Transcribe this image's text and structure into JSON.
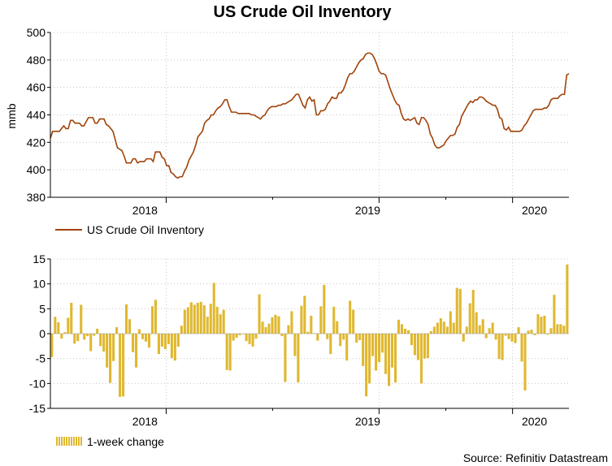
{
  "chart_data": [
    {
      "type": "line",
      "title": "US Crude Oil Inventory",
      "ylabel": "mmb",
      "xlabel": "",
      "ylim": [
        380,
        500
      ],
      "yticks": [
        "380",
        "400",
        "420",
        "440",
        "460",
        "480",
        "500"
      ],
      "xticks": [
        "2018",
        "2019",
        "2020"
      ],
      "xrange": [
        "2017-07",
        "2020-03"
      ],
      "legend": "US Crude Oil Inventory",
      "legend_position": "bottom-left",
      "color": "#a0430a",
      "series": [
        {
          "name": "US Crude Oil Inventory",
          "values": [
            423,
            428,
            428,
            428,
            428,
            430,
            432,
            430,
            430,
            436,
            436,
            434,
            434,
            434,
            432,
            432,
            435,
            438,
            438,
            438,
            434,
            434,
            437,
            437,
            437,
            433,
            432,
            430,
            428,
            422,
            416,
            415,
            414,
            410,
            405,
            405,
            405,
            408,
            408,
            405,
            406,
            406,
            406,
            408,
            408,
            408,
            406,
            413,
            413,
            413,
            409,
            408,
            403,
            403,
            398,
            397,
            395,
            394,
            395,
            395,
            399,
            402,
            407,
            410,
            413,
            418,
            424,
            426,
            428,
            434,
            436,
            437,
            440,
            440,
            443,
            445,
            446,
            448,
            451,
            451,
            446,
            442,
            442,
            442,
            441,
            441,
            441,
            441,
            441,
            441,
            440,
            440,
            439,
            438,
            437,
            439,
            440,
            443,
            445,
            446,
            446,
            446,
            447,
            447,
            448,
            448,
            449,
            450,
            451,
            453,
            455,
            455,
            451,
            447,
            445,
            451,
            453,
            450,
            451,
            440,
            440,
            443,
            443,
            444,
            448,
            450,
            453,
            452,
            452,
            456,
            456,
            458,
            462,
            467,
            470,
            470,
            472,
            475,
            478,
            480,
            481,
            484,
            485,
            485,
            484,
            481,
            477,
            472,
            470,
            470,
            469,
            464,
            459,
            455,
            451,
            448,
            447,
            441,
            437,
            436,
            437,
            436,
            437,
            438,
            434,
            433,
            438,
            438,
            436,
            433,
            426,
            423,
            418,
            416,
            416,
            417,
            418,
            421,
            423,
            425,
            425,
            426,
            431,
            433,
            439,
            442,
            445,
            448,
            450,
            449,
            451,
            451,
            453,
            453,
            452,
            450,
            449,
            448,
            447,
            447,
            444,
            438,
            437,
            430,
            429,
            431,
            428,
            428,
            428,
            428,
            428,
            429,
            432,
            434,
            437,
            440,
            443,
            444,
            444,
            444,
            444,
            445,
            445,
            447,
            451,
            452,
            452,
            452,
            454,
            455,
            455,
            469,
            470
          ]
        }
      ]
    },
    {
      "type": "bar",
      "title": "",
      "ylabel": "",
      "xlabel": "",
      "ylim": [
        -15,
        15
      ],
      "yticks": [
        "-15",
        "-10",
        "-5",
        "0",
        "5",
        "10",
        "15"
      ],
      "xticks": [
        "2018",
        "2019",
        "2020"
      ],
      "xrange": [
        "2017-07",
        "2020-03"
      ],
      "legend": "1-week change",
      "legend_position": "bottom-left",
      "color": "#e0b830",
      "series": [
        {
          "name": "1-week change",
          "values": [
            -4.7,
            3.4,
            2.3,
            -1.0,
            0.3,
            3.2,
            6.2,
            -2.0,
            -1.5,
            5.8,
            -1.2,
            -0.5,
            -3.5,
            -0.4,
            1.0,
            -2.5,
            -3.6,
            -6.8,
            -9.9,
            -5.5,
            1.3,
            -12.7,
            -12.6,
            5.9,
            2.9,
            -3.7,
            -6.8,
            0.9,
            -1.1,
            -1.6,
            -2.8,
            5.5,
            6.8,
            -4.1,
            -2.6,
            -3.1,
            -2.1,
            -4.9,
            -5.4,
            -2.6,
            1.6,
            4.8,
            5.3,
            6.3,
            5.8,
            6.2,
            6.4,
            5.7,
            3.4,
            6.0,
            10.2,
            5.4,
            3.9,
            4.8,
            -7.3,
            -7.4,
            -1.4,
            -0.8,
            -0.3,
            -0.1,
            -1.5,
            -2.1,
            -2.6,
            -1.0,
            7.9,
            2.4,
            1.3,
            2.0,
            3.3,
            3.8,
            3.5,
            -0.5,
            -9.7,
            1.7,
            4.5,
            -4.5,
            -9.8,
            5.6,
            7.6,
            0.4,
            3.6,
            0.1,
            -1.4,
            5.5,
            9.8,
            -1.1,
            -4.1,
            5.4,
            2.5,
            -2.5,
            -1.2,
            -5.4,
            6.6,
            4.8,
            -1.8,
            -1.3,
            -6.5,
            -12.6,
            -10.0,
            -4.5,
            -7.4,
            -5.7,
            -3.8,
            -8.1,
            -10.5,
            -6.8,
            -9.8,
            2.8,
            1.9,
            1.0,
            0.7,
            -2.3,
            -4.3,
            -5.3,
            -10.0,
            -5.0,
            -4.9,
            0.5,
            1.4,
            2.2,
            3.1,
            2.4,
            1.4,
            4.5,
            2.2,
            9.2,
            9.0,
            -1.6,
            1.4,
            6.1,
            8.8,
            4.3,
            1.7,
            2.9,
            -0.9,
            1.1,
            2.2,
            -1.2,
            -5.1,
            -5.3,
            -0.4,
            -1.1,
            -1.6,
            -1.9,
            1.3,
            -5.6,
            -11.4,
            0.6,
            0.8,
            -0.3,
            3.9,
            3.4,
            3.6,
            -0.2,
            1.1,
            7.8,
            1.9,
            1.9,
            1.6,
            13.9
          ]
        }
      ]
    }
  ],
  "source": "Source: Refinitiv Datastream"
}
